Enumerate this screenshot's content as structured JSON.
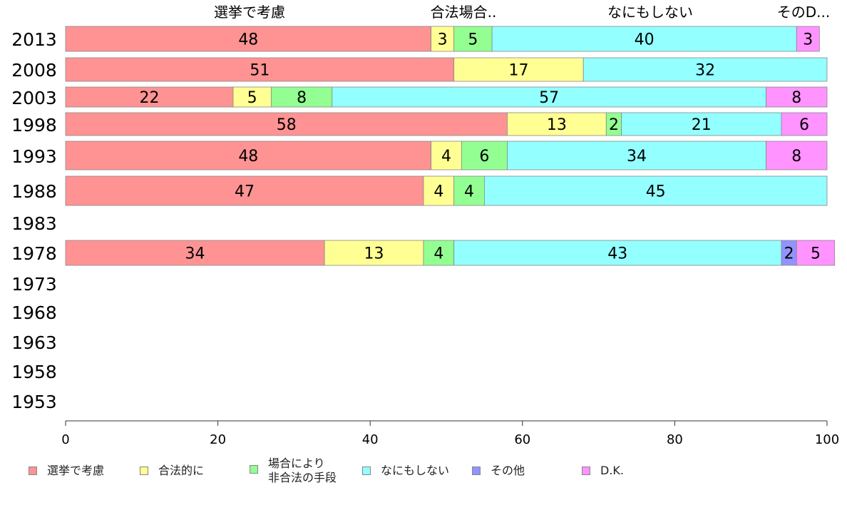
{
  "chart_data": {
    "type": "bar",
    "orientation": "horizontal",
    "stacked": true,
    "categories": [
      "2013",
      "2008",
      "2003",
      "1998",
      "1993",
      "1988",
      "1983",
      "1978",
      "1973",
      "1968",
      "1963",
      "1958",
      "1953"
    ],
    "series": [
      {
        "name": "選挙で考慮",
        "values": [
          48,
          51,
          22,
          58,
          48,
          47,
          null,
          34,
          null,
          null,
          null,
          null,
          null
        ]
      },
      {
        "name": "合法的に",
        "values": [
          3,
          17,
          5,
          13,
          4,
          4,
          null,
          13,
          null,
          null,
          null,
          null,
          null
        ]
      },
      {
        "name": "場合により\n非合法の手段",
        "values": [
          5,
          0,
          8,
          2,
          6,
          4,
          null,
          4,
          null,
          null,
          null,
          null,
          null
        ]
      },
      {
        "name": "なにもしない",
        "values": [
          40,
          32,
          57,
          21,
          34,
          45,
          null,
          43,
          null,
          null,
          null,
          null,
          null
        ]
      },
      {
        "name": "その他",
        "values": [
          0,
          0,
          0,
          0,
          0,
          0,
          null,
          2,
          null,
          null,
          null,
          null,
          null
        ]
      },
      {
        "name": "D.K.",
        "values": [
          3,
          0,
          8,
          6,
          8,
          0,
          null,
          5,
          null,
          null,
          null,
          null,
          null
        ]
      }
    ],
    "top_labels": [
      "選挙で考慮",
      "合法場合..",
      "なにもしない",
      "そのD..."
    ],
    "xlim": [
      0,
      100
    ],
    "xticks": [
      0,
      20,
      40,
      60,
      80,
      100
    ],
    "legend_position": "bottom",
    "grid": false
  },
  "colors": [
    "#ff9393",
    "#ffff93",
    "#93ff93",
    "#93ffff",
    "#9393ff",
    "#ff93ff"
  ]
}
